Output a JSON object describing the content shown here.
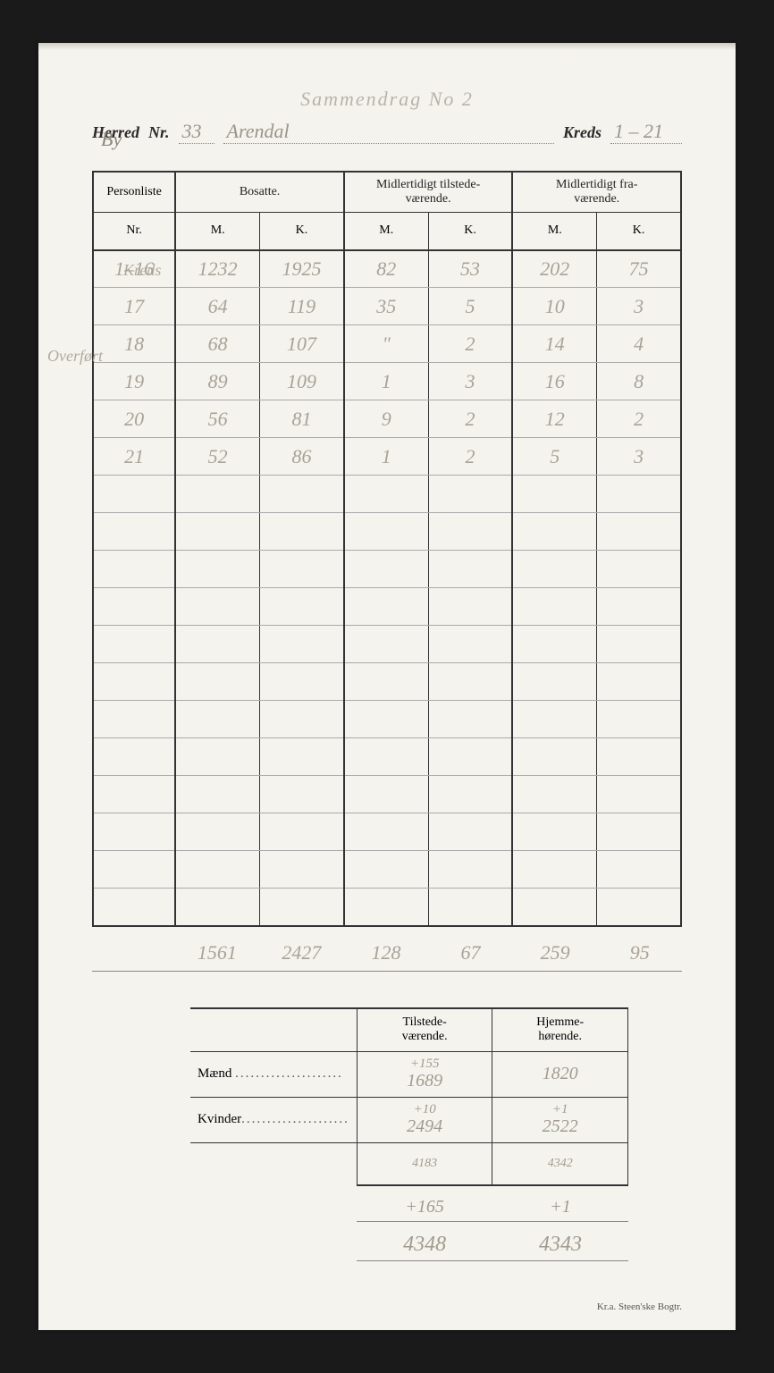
{
  "type": "census-form",
  "background_color": "#f5f3ee",
  "print_color": "#2a2a2a",
  "handwriting_color": "#a09b8e",
  "border_color": "#333333",
  "page_title_faint": "Sammendrag   No 2",
  "by_label": "By",
  "header": {
    "herred_label": "Herred",
    "nr_label": "Nr.",
    "nr_value": "33",
    "name_value": "Arendal",
    "kreds_label": "Kreds",
    "kreds_value": "1 – 21"
  },
  "margin_note": "Overført",
  "nr_annotation": "Kreds",
  "main_table": {
    "columns_group1": "Personliste",
    "columns_group2": "Bosatte.",
    "columns_group3": "Midlertidigt tilstede-\nværende.",
    "columns_group4": "Midlertidigt fra-\nværende.",
    "sub_nr": "Nr.",
    "sub_m": "M.",
    "sub_k": "K.",
    "rows": [
      {
        "nr": "1–16",
        "bm": "1232",
        "bk": "1925",
        "tm": "82",
        "tk": "53",
        "fm": "202",
        "fk": "75"
      },
      {
        "nr": "17",
        "bm": "64",
        "bk": "119",
        "tm": "35",
        "tk": "5",
        "fm": "10",
        "fk": "3"
      },
      {
        "nr": "18",
        "bm": "68",
        "bk": "107",
        "tm": "\"",
        "tk": "2",
        "fm": "14",
        "fk": "4"
      },
      {
        "nr": "19",
        "bm": "89",
        "bk": "109",
        "tm": "1",
        "tk": "3",
        "fm": "16",
        "fk": "8"
      },
      {
        "nr": "20",
        "bm": "56",
        "bk": "81",
        "tm": "9",
        "tk": "2",
        "fm": "12",
        "fk": "2"
      },
      {
        "nr": "21",
        "bm": "52",
        "bk": "86",
        "tm": "1",
        "tk": "2",
        "fm": "5",
        "fk": "3"
      }
    ],
    "empty_rows": 12,
    "totals": {
      "nr": "",
      "bm": "1561",
      "bk": "2427",
      "tm": "128",
      "tk": "67",
      "fm": "259",
      "fk": "95"
    }
  },
  "summary_table": {
    "col1": "Tilstede-\nværende.",
    "col2": "Hjemme-\nhørende.",
    "row1_label": "Mænd",
    "row2_label": "Kvinder",
    "maend_tv_note": "+155",
    "maend_tv": "1689",
    "maend_hh": "1820",
    "kvinder_tv_note": "+10",
    "kvinder_tv": "2494",
    "kvinder_hh_note": "+1",
    "kvinder_hh": "2522",
    "sum_tv": "4183",
    "sum_hh": "4342"
  },
  "below": {
    "adj_tv": "+165",
    "adj_hh": "+1",
    "grand_tv": "4348",
    "grand_hh": "4343"
  },
  "imprint": "Kr.a.  Steen'ske Bogtr."
}
